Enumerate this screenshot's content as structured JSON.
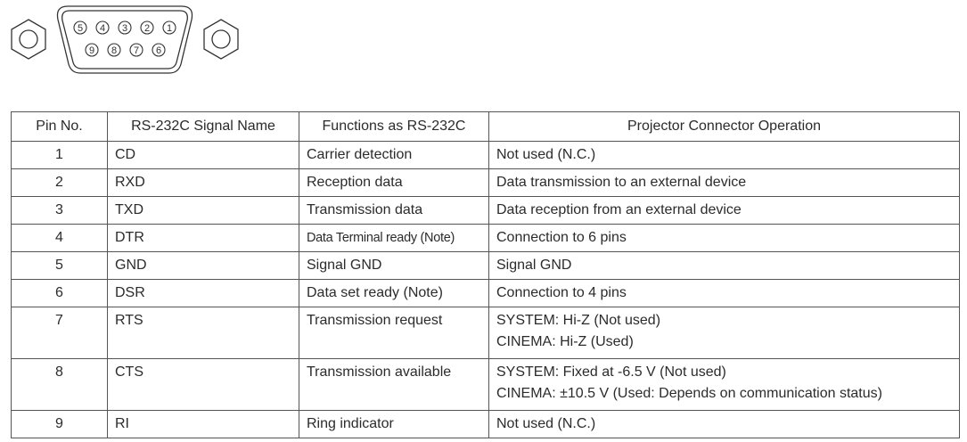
{
  "connector": {
    "top_row_pins": [
      "5",
      "4",
      "3",
      "2",
      "1"
    ],
    "bottom_row_pins": [
      "9",
      "8",
      "7",
      "6"
    ]
  },
  "table": {
    "headers": [
      "Pin No.",
      "RS-232C Signal Name",
      "Functions as RS-232C",
      "Projector Connector Operation"
    ],
    "rows": [
      {
        "pin": "1",
        "signal": "CD",
        "function": "Carrier detection",
        "operation": [
          "Not used (N.C.)"
        ]
      },
      {
        "pin": "2",
        "signal": "RXD",
        "function": "Reception data",
        "operation": [
          "Data transmission to an external device"
        ]
      },
      {
        "pin": "3",
        "signal": "TXD",
        "function": "Transmission data",
        "operation": [
          "Data reception from an external device"
        ]
      },
      {
        "pin": "4",
        "signal": "DTR",
        "function": "Data Terminal ready (Note)",
        "operation": [
          "Connection to 6 pins"
        ]
      },
      {
        "pin": "5",
        "signal": "GND",
        "function": "Signal GND",
        "operation": [
          "Signal GND"
        ]
      },
      {
        "pin": "6",
        "signal": "DSR",
        "function": "Data set ready (Note)",
        "operation": [
          "Connection to 4 pins"
        ]
      },
      {
        "pin": "7",
        "signal": "RTS",
        "function": "Transmission request",
        "operation": [
          "SYSTEM: Hi-Z (Not used)",
          "CINEMA: Hi-Z (Used)"
        ]
      },
      {
        "pin": "8",
        "signal": "CTS",
        "function": "Transmission available",
        "operation": [
          "SYSTEM: Fixed at -6.5 V (Not used)",
          "CINEMA: ±10.5 V (Used: Depends on communication status)"
        ]
      },
      {
        "pin": "9",
        "signal": "RI",
        "function": "Ring indicator",
        "operation": [
          "Not used (N.C.)"
        ]
      }
    ]
  }
}
